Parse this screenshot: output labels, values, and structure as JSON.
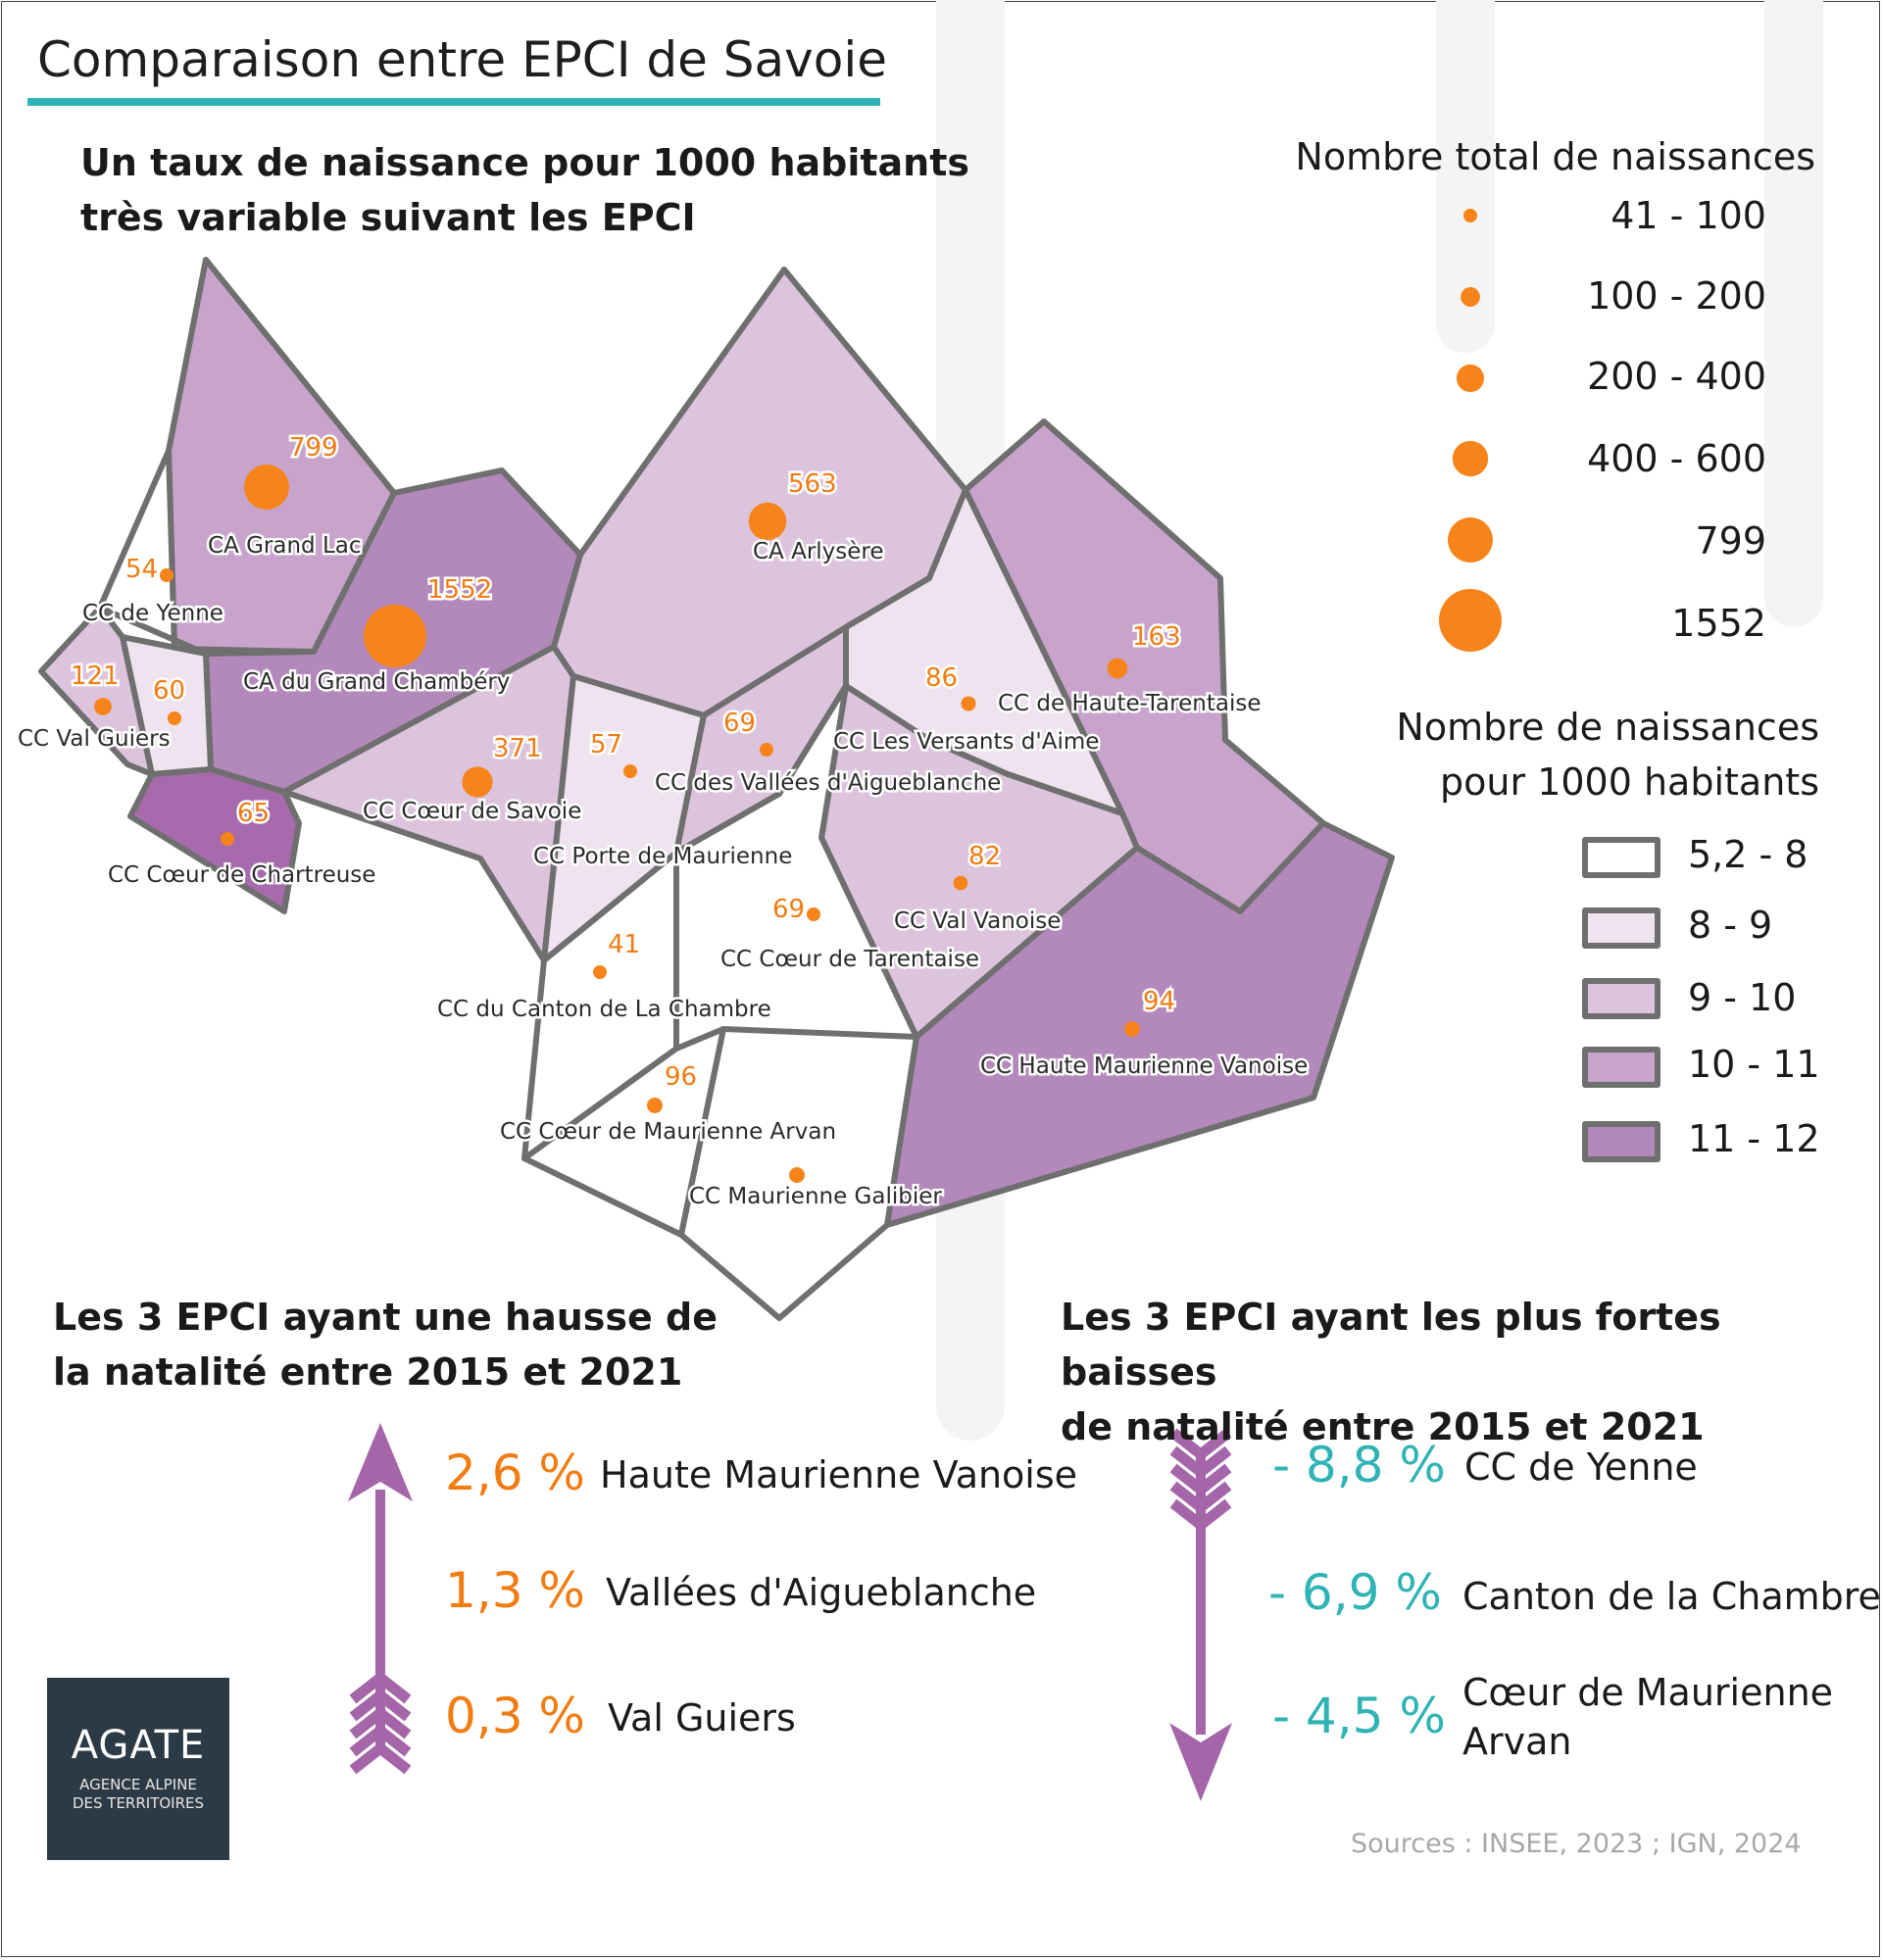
{
  "title": "Comparaison entre EPCI de Savoie",
  "map_title_lines": [
    "Un taux de naissance pour 1000 habitants",
    "très variable suivant les EPCI"
  ],
  "colors": {
    "accent": "#2fb3b5",
    "bubble": "#f7841a",
    "border": "#6f6f6f",
    "classes": [
      "#ffffff",
      "#eee3ef",
      "#dcc4dd",
      "#c8a3cb",
      "#b388ba"
    ],
    "chartreuse": "#a76aad",
    "arrow": "#a466a8",
    "logo_bg": "#2c3a45"
  },
  "legend_births": {
    "title": "Nombre total de naissances",
    "items": [
      {
        "label": "41 - 100",
        "value": 70
      },
      {
        "label": "100 - 200",
        "value": 150
      },
      {
        "label": "200 - 400",
        "value": 300
      },
      {
        "label": "400 - 600",
        "value": 500
      },
      {
        "label": "799",
        "value": 799
      },
      {
        "label": "1552",
        "value": 1552
      }
    ]
  },
  "legend_rate": {
    "title_lines": [
      "Nombre de naissances",
      "pour 1000 habitants"
    ],
    "classes": [
      "5,2 - 8",
      "8 - 9",
      "9 - 10",
      "10 - 11",
      "11 - 12"
    ]
  },
  "epci": [
    {
      "name": "CA Grand Lac",
      "births": 799,
      "rate_class": 3
    },
    {
      "name": "CC de Yenne",
      "births": 54,
      "rate_class": 0
    },
    {
      "name": "CA du Grand Chambéry",
      "births": 1552,
      "rate_class": 4
    },
    {
      "name": "CC Val Guiers",
      "births": 121,
      "rate_class": 2
    },
    {
      "name": "",
      "births": 60,
      "rate_class": 1
    },
    {
      "name": "CC Cœur de Chartreuse",
      "births": 65,
      "rate_class": 5
    },
    {
      "name": "CC Cœur de Savoie",
      "births": 371,
      "rate_class": 2
    },
    {
      "name": "CA Arlysère",
      "births": 563,
      "rate_class": 2
    },
    {
      "name": "CC Porte de Maurienne",
      "births": 57,
      "rate_class": 1
    },
    {
      "name": "CC des Vallées d'Aigueblanche",
      "births": 69,
      "rate_class": 2
    },
    {
      "name": "CC Les Versants d'Aime",
      "births": 86,
      "rate_class": 1
    },
    {
      "name": "CC de Haute-Tarentaise",
      "births": 163,
      "rate_class": 3
    },
    {
      "name": "CC Val Vanoise",
      "births": 82,
      "rate_class": 2
    },
    {
      "name": "CC Cœur de Tarentaise",
      "births": 69,
      "rate_class": 0
    },
    {
      "name": "CC du Canton de La Chambre",
      "births": 41,
      "rate_class": 0
    },
    {
      "name": "CC Haute Maurienne Vanoise",
      "births": 94,
      "rate_class": 4
    },
    {
      "name": "CC Cœur de Maurienne Arvan",
      "births": 96,
      "rate_class": 0
    },
    {
      "name": "CC Maurienne Galibier",
      "births": null,
      "rate_class": 0
    }
  ],
  "increase": {
    "title_lines": [
      "Les 3 EPCI ayant une hausse de",
      "la natalité entre 2015 et 2021"
    ],
    "items": [
      {
        "pct": "2,6 %",
        "name": "Haute Maurienne Vanoise"
      },
      {
        "pct": "1,3 %",
        "name": "Vallées d'Aigueblanche"
      },
      {
        "pct": "0,3 %",
        "name": "Val Guiers"
      }
    ]
  },
  "decrease": {
    "title_lines": [
      "Les 3 EPCI ayant les plus fortes baisses",
      "de natalité entre 2015 et 2021"
    ],
    "items": [
      {
        "pct": "- 8,8 %",
        "name_lines": [
          "CC de Yenne"
        ]
      },
      {
        "pct": "- 6,9 %",
        "name_lines": [
          "Canton de la Chambre"
        ]
      },
      {
        "pct": "- 4,5 %",
        "name_lines": [
          "Cœur de Maurienne",
          "Arvan"
        ]
      }
    ]
  },
  "logo": {
    "word": "AGATE",
    "sub_lines": [
      "AGENCE ALPINE",
      "DES TERRITOIRES"
    ]
  },
  "sources": "Sources : INSEE, 2023 ; IGN, 2024"
}
